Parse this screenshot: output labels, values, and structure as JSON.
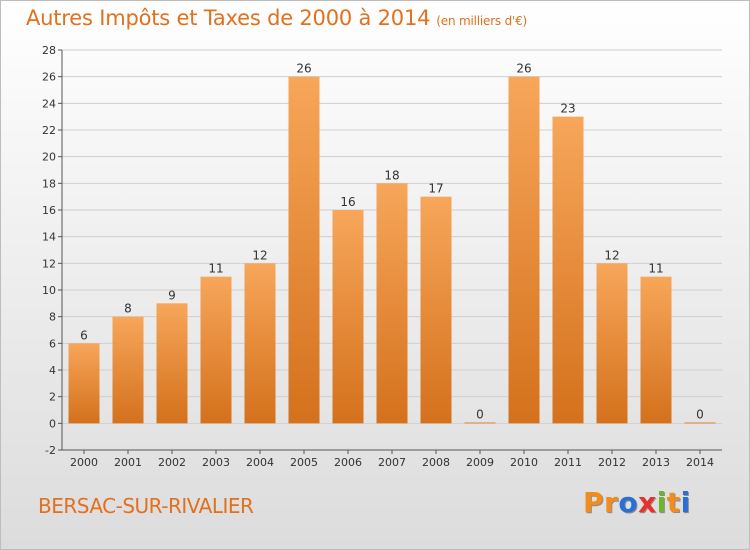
{
  "header": {
    "title": "Autres Impôts et Taxes de 2000 à 2014",
    "unit": "(en milliers d'€)"
  },
  "footer": {
    "commune": "BERSAC-SUR-RIVALIER",
    "logo": {
      "text": "Proxiti",
      "colors": [
        "#f28c1c",
        "#f28c1c",
        "#2a6fd1",
        "#e6312e",
        "#6fb52c",
        "#f28c1c",
        "#2a6fd1"
      ]
    }
  },
  "colors": {
    "accent": "#e2701c",
    "bar_top": "#f7a65a",
    "bar_bottom": "#d4711c",
    "grid": "#cfcfcf"
  },
  "chart_data": {
    "type": "bar",
    "title": "Autres Impôts et Taxes de 2000 à 2014",
    "subtitle": "(en milliers d'€)",
    "xlabel": "",
    "ylabel": "",
    "categories": [
      "2000",
      "2001",
      "2002",
      "2003",
      "2004",
      "2005",
      "2006",
      "2007",
      "2008",
      "2009",
      "2010",
      "2011",
      "2012",
      "2013",
      "2014"
    ],
    "values": [
      6,
      8,
      9,
      11,
      12,
      26,
      16,
      18,
      17,
      0,
      26,
      23,
      12,
      11,
      0
    ],
    "data_labels": [
      "6",
      "8",
      "9",
      "11",
      "12",
      "26",
      "16",
      "18",
      "17",
      "0",
      "26",
      "23",
      "12",
      "11",
      "0"
    ],
    "ylim": [
      -2,
      28
    ],
    "yticks": [
      -2,
      0,
      2,
      4,
      6,
      8,
      10,
      12,
      14,
      16,
      18,
      20,
      22,
      24,
      26,
      28
    ],
    "grid": true,
    "legend": "none"
  }
}
